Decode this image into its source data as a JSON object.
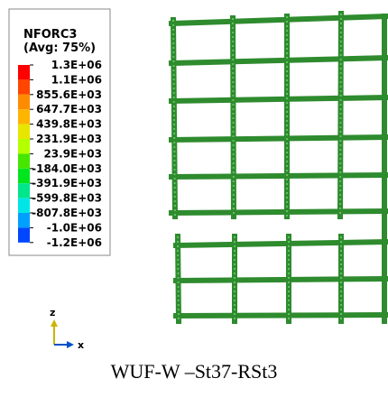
{
  "legend": {
    "title": "NFORC3",
    "subtitle": "(Avg: 75%)",
    "labels": [
      "1.3E+06",
      "1.1E+06",
      "855.6E+03",
      "647.7E+03",
      "439.8E+03",
      "231.9E+03",
      "23.9E+03",
      "-184.0E+03",
      "-391.9E+03",
      "-599.8E+03",
      "-807.8E+03",
      "-1.0E+06",
      "-1.2E+06"
    ],
    "colors": [
      "#ff0000",
      "#ff4500",
      "#ff8c00",
      "#ffb400",
      "#e6e600",
      "#b4ff00",
      "#46e600",
      "#00e61e",
      "#00e68c",
      "#00e6e6",
      "#00a0ff",
      "#0046ff"
    ]
  },
  "triad": {
    "vertical": "z",
    "horizontal": "x"
  },
  "caption": "WUF-W –St37-RSt3"
}
